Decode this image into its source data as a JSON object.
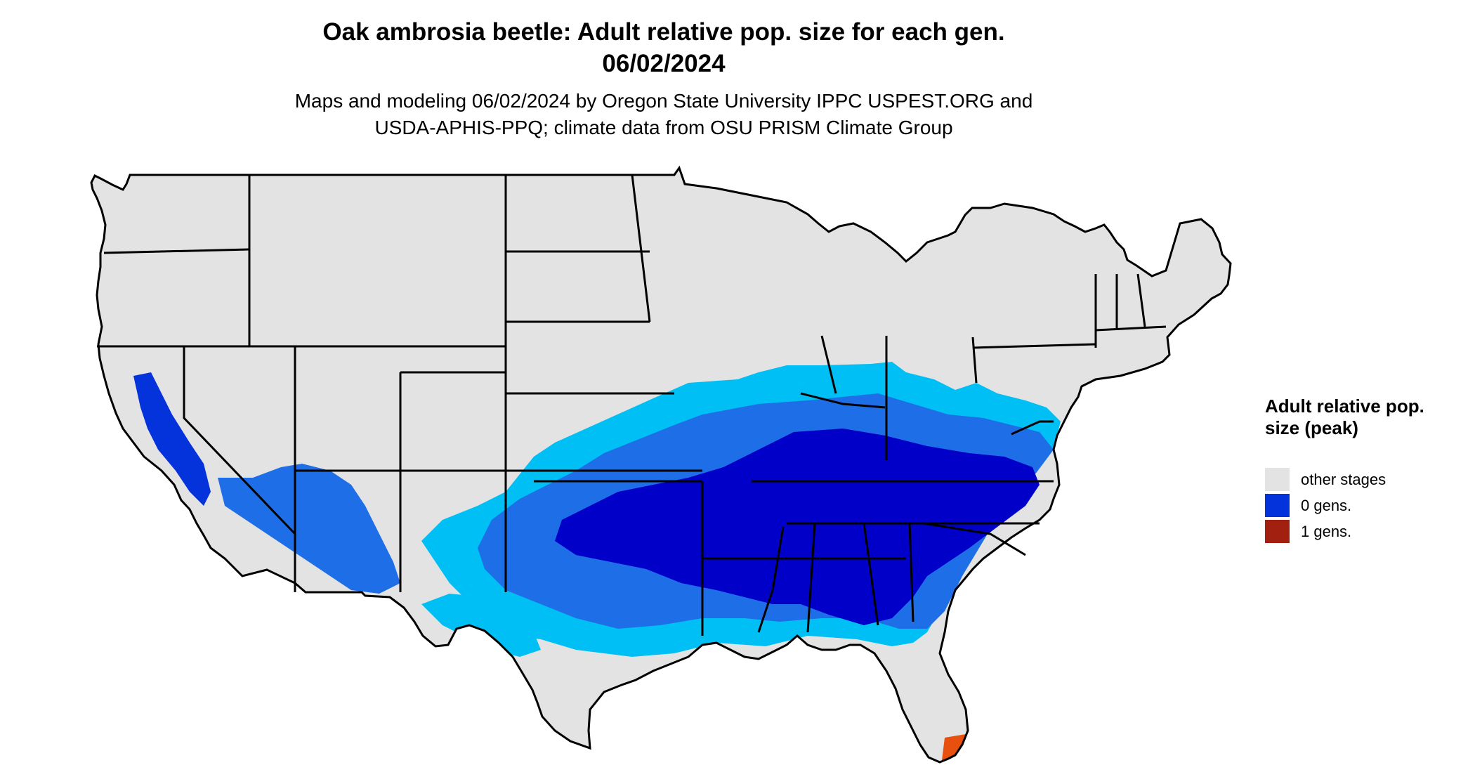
{
  "header": {
    "title_line1": "Oak ambrosia beetle: Adult relative pop. size for each gen.",
    "title_line2": "06/02/2024",
    "subtitle_line1": "Maps and modeling 06/02/2024 by Oregon State University IPPC USPEST.ORG and",
    "subtitle_line2": "USDA-APHIS-PPQ; climate data from OSU PRISM Climate Group"
  },
  "legend": {
    "title": "Adult relative pop. size (peak)",
    "items": [
      {
        "label": "other stages",
        "color": "#e3e3e3"
      },
      {
        "label": "0 gens.",
        "color": "#0433dc"
      },
      {
        "label": "1 gens.",
        "color": "#a2200f"
      }
    ]
  },
  "map_colors": {
    "background_land": "#e3e3e3",
    "light_blue": "#00bff5",
    "medium_blue": "#1e6ee8",
    "dark_blue": "#0000c8",
    "red": "#a2200f",
    "orange": "#e85010",
    "borders": "#000000"
  }
}
